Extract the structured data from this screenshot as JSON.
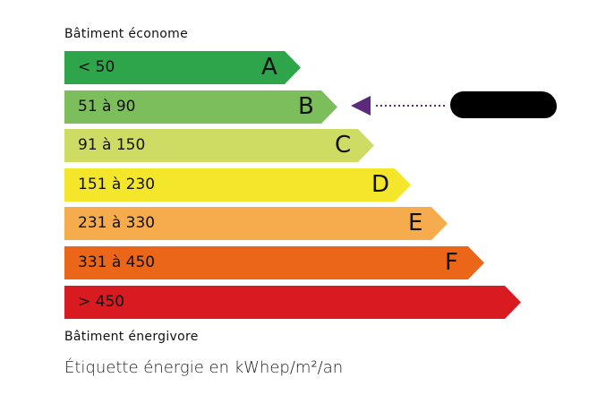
{
  "top_caption": "Bâtiment économe",
  "bottom_caption": "Bâtiment énergivore",
  "unit_caption": "Étiquette énergie en kWhep/m²/an",
  "classes": [
    {
      "letter": "A",
      "range": "< 50",
      "color": "#2ea44b"
    },
    {
      "letter": "B",
      "range": "51 à 90",
      "color": "#7cbd5c"
    },
    {
      "letter": "C",
      "range": "91 à 150",
      "color": "#cfdc64"
    },
    {
      "letter": "D",
      "range": "151 à 230",
      "color": "#f4e62b"
    },
    {
      "letter": "E",
      "range": "231 à 330",
      "color": "#f6ac4c"
    },
    {
      "letter": "F",
      "range": "331 à 450",
      "color": "#ec6619"
    },
    {
      "letter": "",
      "range": "> 450",
      "color": "#d81b21"
    }
  ],
  "indicator": {
    "selected_class": "B",
    "color": "#5b2a7d",
    "label_redacted": true
  }
}
